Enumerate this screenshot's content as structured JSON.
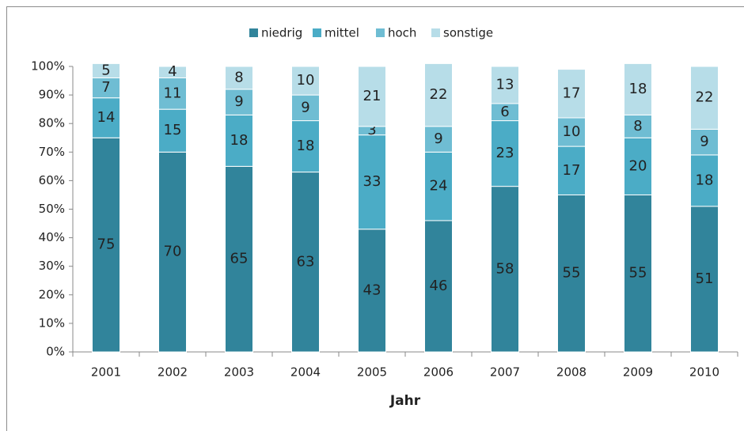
{
  "chart_data": {
    "type": "stacked_bar",
    "x_label": "Jahr",
    "categories": [
      "2001",
      "2002",
      "2003",
      "2004",
      "2005",
      "2006",
      "2007",
      "2008",
      "2009",
      "2010"
    ],
    "series": [
      {
        "name": "niedrig",
        "color": "#31849b",
        "values": [
          75,
          70,
          65,
          63,
          43,
          46,
          58,
          55,
          55,
          51
        ]
      },
      {
        "name": "mittel",
        "color": "#4bacc6",
        "values": [
          14,
          15,
          18,
          18,
          33,
          24,
          23,
          17,
          20,
          18
        ]
      },
      {
        "name": "hoch",
        "color": "#6fbdd3",
        "values": [
          7,
          11,
          9,
          9,
          3,
          9,
          6,
          10,
          8,
          9
        ]
      },
      {
        "name": "sonstige",
        "color": "#b7dde8",
        "values": [
          5,
          4,
          8,
          10,
          21,
          22,
          13,
          17,
          18,
          22
        ]
      }
    ],
    "ylim": [
      0,
      100
    ],
    "yticks": [
      {
        "value": 0,
        "label": "0%"
      },
      {
        "value": 10,
        "label": "10%"
      },
      {
        "value": 20,
        "label": "20%"
      },
      {
        "value": 30,
        "label": "30%"
      },
      {
        "value": 40,
        "label": "40%"
      },
      {
        "value": 50,
        "label": "50%"
      },
      {
        "value": 60,
        "label": "60%"
      },
      {
        "value": 70,
        "label": "70%"
      },
      {
        "value": 80,
        "label": "80%"
      },
      {
        "value": 90,
        "label": "90%"
      },
      {
        "value": 100,
        "label": "100%"
      }
    ],
    "grid": false,
    "legend": "top"
  }
}
